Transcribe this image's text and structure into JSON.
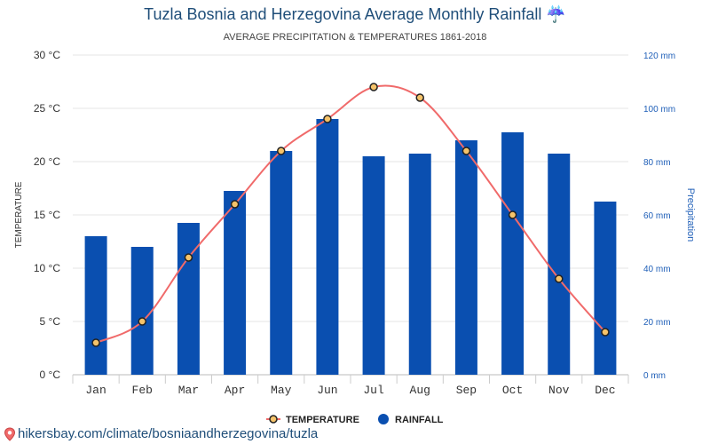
{
  "title": "Tuzla Bosnia and Herzegovina Average Monthly Rainfall",
  "title_icon": "umbrella-rain-icon",
  "subtitle": "AVERAGE PRECIPITATION & TEMPERATURES 1861-2018",
  "footer_url": "hikersbay.com/climate/bosniaandherzegovina/tuzla",
  "footer_icon": "map-pin-icon",
  "colors": {
    "rainfall": "#0a4fb0",
    "temperature": "#f06a6a",
    "marker_fill": "#f5c36a",
    "marker_stroke": "#222222",
    "axis_right": "#1f5fb8"
  },
  "chart_data": {
    "type": "bar",
    "categories": [
      "Jan",
      "Feb",
      "Mar",
      "Apr",
      "May",
      "Jun",
      "Jul",
      "Aug",
      "Sep",
      "Oct",
      "Nov",
      "Dec"
    ],
    "series": [
      {
        "name": "RAINFALL",
        "type": "bar",
        "axis": "right",
        "unit": "mm",
        "values": [
          52,
          48,
          57,
          69,
          84,
          96,
          82,
          83,
          88,
          91,
          83,
          65
        ]
      },
      {
        "name": "TEMPERATURE",
        "type": "line",
        "axis": "left",
        "unit": "°C",
        "values": [
          3,
          5,
          11,
          16,
          21,
          24,
          27,
          26,
          21,
          15,
          9,
          4
        ]
      }
    ],
    "ylabel_left": "TEMPERATURE",
    "ylabel_right": "Precipitation",
    "ylim_left": [
      0,
      30
    ],
    "ylim_right": [
      0,
      120
    ],
    "yticks_left": [
      "0 °C",
      "5 °C",
      "10 °C",
      "15 °C",
      "20 °C",
      "25 °C",
      "30 °C"
    ],
    "yticks_right": [
      "0 mm",
      "20 mm",
      "40 mm",
      "60 mm",
      "80 mm",
      "100 mm",
      "120 mm"
    ],
    "legend": [
      "TEMPERATURE",
      "RAINFALL"
    ],
    "legend_position": "bottom-center",
    "grid": true
  }
}
